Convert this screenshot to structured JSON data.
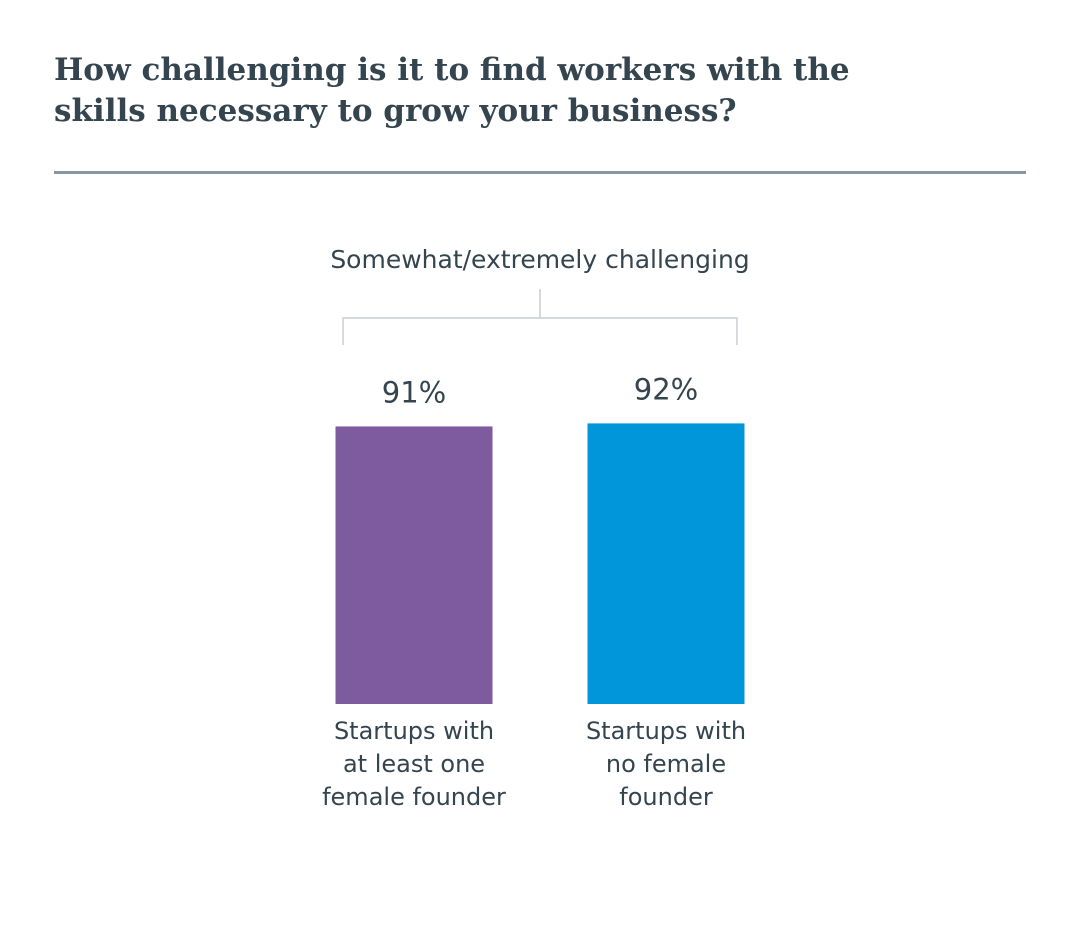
{
  "chart_data": {
    "type": "bar",
    "title": "How challenging is it to find workers with the\nskills necessary to grow your business?",
    "group_label": "Somewhat/extremely challenging",
    "categories": [
      [
        "Startups with",
        "at least one",
        "female founder"
      ],
      [
        "Startups with",
        "no female",
        "founder"
      ]
    ],
    "values": [
      91,
      92
    ],
    "value_labels": [
      "91%",
      "92%"
    ],
    "colors": [
      "#7e5b9e",
      "#0096d9"
    ],
    "ylim": [
      0,
      100
    ],
    "grid": false,
    "legend": "none"
  }
}
